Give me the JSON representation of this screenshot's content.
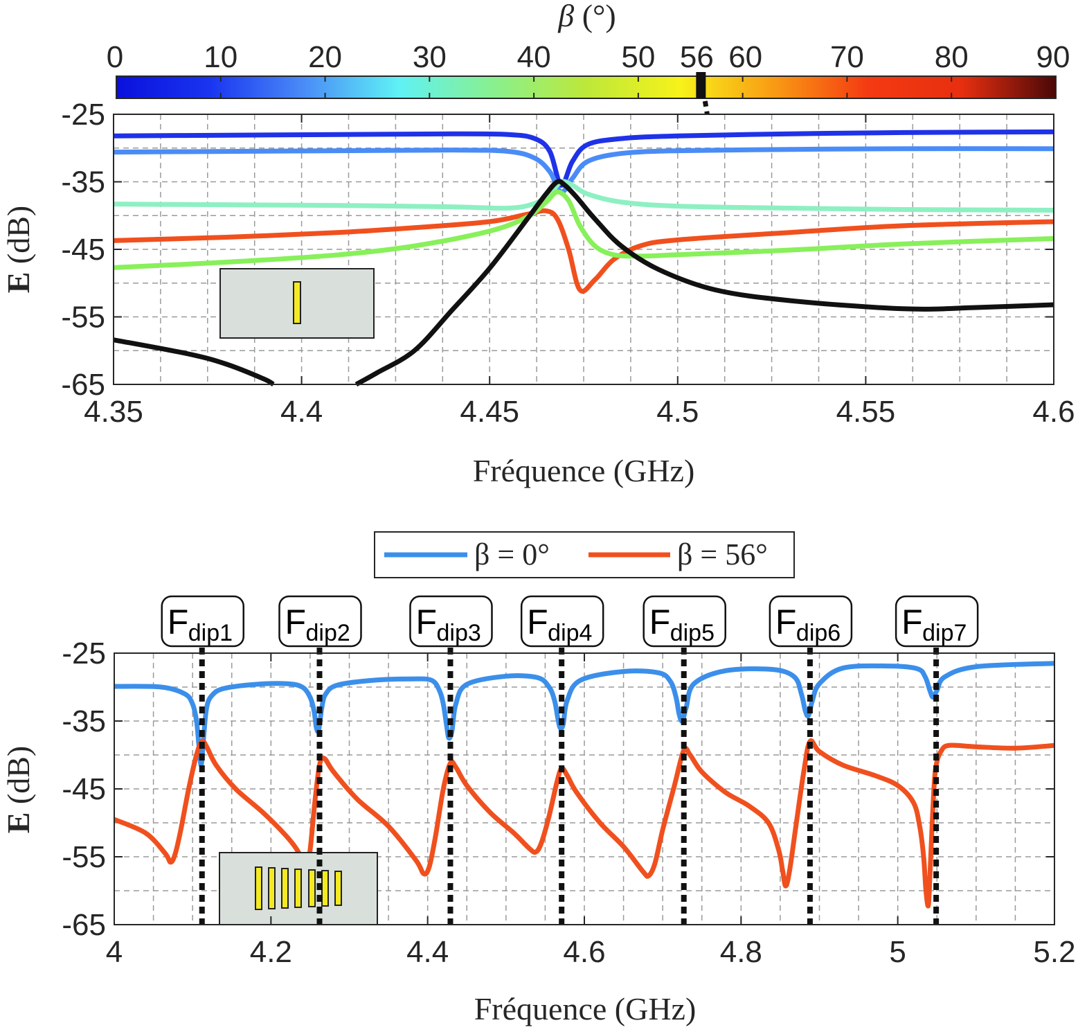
{
  "colors": {
    "beta0": "#3b8fea",
    "beta56": "#f0501e",
    "black": "#111111",
    "inset_bg": "#d9dfdb",
    "element_yellow": "#f4ea22"
  },
  "colorbar": {
    "title_symbol": "β",
    "title_unit": " (°)",
    "ticks": [
      "0",
      "10",
      "20",
      "30",
      "40",
      "50",
      "60",
      "70",
      "80",
      "90"
    ],
    "tick_values": [
      0,
      10,
      20,
      30,
      40,
      50,
      60,
      70,
      80,
      90
    ],
    "marker_label": "56",
    "marker_value": 56,
    "range": [
      0,
      90
    ],
    "stops": [
      "#0a10dc",
      "#1a35f0",
      "#4a8cf7",
      "#5ff1f5",
      "#88f08f",
      "#bde83a",
      "#f7f21a",
      "#f99b14",
      "#f43a12",
      "#e72f10",
      "#4a0808"
    ]
  },
  "chart_data": [
    {
      "type": "line",
      "xlabel": "Fréquence (GHz)",
      "ylabel_bold": "E",
      "ylabel_rest": " (dB)",
      "xlim": [
        4.35,
        4.6
      ],
      "ylim": [
        -65,
        -25
      ],
      "xticks": [
        "4.35",
        "4.4",
        "4.45",
        "4.5",
        "4.55",
        "4.6"
      ],
      "xtick_values": [
        4.35,
        4.4,
        4.45,
        4.5,
        4.55,
        4.6
      ],
      "yticks": [
        "-25",
        "-35",
        "-45",
        "-55",
        "-65"
      ],
      "ytick_values": [
        -25,
        -35,
        -45,
        -55,
        -65
      ],
      "grid": true,
      "series": [
        {
          "color": "#1f32e8",
          "x": [
            4.35,
            4.38,
            4.41,
            4.44,
            4.455,
            4.462,
            4.466,
            4.469,
            4.472,
            4.476,
            4.485,
            4.5,
            4.53,
            4.56,
            4.6
          ],
          "values": [
            -28.2,
            -28.1,
            -28.0,
            -27.9,
            -28.0,
            -28.6,
            -30.5,
            -35.5,
            -32.0,
            -29.5,
            -28.6,
            -28.2,
            -27.9,
            -27.7,
            -27.6
          ]
        },
        {
          "color": "#4a8cf7",
          "x": [
            4.35,
            4.38,
            4.41,
            4.44,
            4.455,
            4.462,
            4.466,
            4.469,
            4.472,
            4.476,
            4.485,
            4.5,
            4.53,
            4.56,
            4.6
          ],
          "values": [
            -30.6,
            -30.5,
            -30.4,
            -30.3,
            -30.5,
            -31.5,
            -33.5,
            -36.5,
            -34.5,
            -32.0,
            -30.8,
            -30.4,
            -30.2,
            -30.1,
            -30.1
          ]
        },
        {
          "color": "#8ef0c2",
          "x": [
            4.35,
            4.38,
            4.41,
            4.44,
            4.455,
            4.462,
            4.466,
            4.469,
            4.472,
            4.476,
            4.485,
            4.5,
            4.53,
            4.56,
            4.6
          ],
          "values": [
            -38.3,
            -38.4,
            -38.5,
            -38.7,
            -38.9,
            -38.2,
            -36.8,
            -35.0,
            -35.5,
            -36.8,
            -38.0,
            -38.6,
            -38.9,
            -39.1,
            -39.2
          ]
        },
        {
          "color": "#f0501e",
          "x": [
            4.35,
            4.38,
            4.41,
            4.43,
            4.45,
            4.46,
            4.465,
            4.468,
            4.471,
            4.474,
            4.478,
            4.483,
            4.49,
            4.5,
            4.53,
            4.56,
            4.6
          ],
          "values": [
            -43.7,
            -43.2,
            -42.5,
            -41.8,
            -40.9,
            -39.8,
            -39.3,
            -40.5,
            -45.0,
            -51.0,
            -49.5,
            -46.5,
            -44.5,
            -43.6,
            -42.5,
            -41.5,
            -40.9
          ]
        },
        {
          "color": "#88f05a",
          "x": [
            4.35,
            4.38,
            4.41,
            4.43,
            4.45,
            4.46,
            4.465,
            4.468,
            4.471,
            4.474,
            4.478,
            4.483,
            4.49,
            4.5,
            4.53,
            4.56,
            4.6
          ],
          "values": [
            -47.7,
            -46.9,
            -45.8,
            -44.5,
            -42.3,
            -40.2,
            -38.0,
            -36.5,
            -37.8,
            -41.5,
            -44.5,
            -45.8,
            -46.0,
            -45.8,
            -45.1,
            -44.2,
            -43.4
          ]
        },
        {
          "color": "#111111",
          "x": [
            4.35,
            4.37,
            4.38,
            4.39,
            4.3925
          ],
          "values": [
            -58.4,
            -60.5,
            -62.0,
            -64.2,
            -65.0
          ]
        },
        {
          "color": "#111111",
          "x": [
            4.4145,
            4.42,
            4.43,
            4.44,
            4.45,
            4.46,
            4.465,
            4.468,
            4.47,
            4.473,
            4.478,
            4.485,
            4.495,
            4.51,
            4.53,
            4.56,
            4.58,
            4.6
          ],
          "values": [
            -65.0,
            -63.3,
            -60.0,
            -54.0,
            -47.8,
            -40.5,
            -36.8,
            -35.0,
            -35.5,
            -37.2,
            -40.5,
            -44.5,
            -48.0,
            -51.0,
            -52.6,
            -53.8,
            -53.6,
            -53.2
          ]
        }
      ]
    },
    {
      "type": "line",
      "xlabel": "Fréquence (GHz)",
      "ylabel_bold": "E",
      "ylabel_rest": " (dB)",
      "xlim": [
        4.0,
        5.2
      ],
      "ylim": [
        -65,
        -25
      ],
      "xticks": [
        "4",
        "4.2",
        "4.4",
        "4.6",
        "4.8",
        "5",
        "5.2"
      ],
      "xtick_values": [
        4.0,
        4.2,
        4.4,
        4.6,
        4.8,
        5.0,
        5.2
      ],
      "yticks": [
        "-25",
        "-35",
        "-45",
        "-55",
        "-65"
      ],
      "ytick_values": [
        -25,
        -35,
        -45,
        -55,
        -65
      ],
      "grid": true,
      "legend": [
        "β = 0°",
        "β = 56°"
      ],
      "legend_placement": "top-center",
      "dips": [
        {
          "label_main": "F",
          "label_sub": "dip1",
          "x": 4.112
        },
        {
          "label_main": "F",
          "label_sub": "dip2",
          "x": 4.262
        },
        {
          "label_main": "F",
          "label_sub": "dip3",
          "x": 4.429
        },
        {
          "label_main": "F",
          "label_sub": "dip4",
          "x": 4.571
        },
        {
          "label_main": "F",
          "label_sub": "dip5",
          "x": 4.727
        },
        {
          "label_main": "F",
          "label_sub": "dip6",
          "x": 4.888
        },
        {
          "label_main": "F",
          "label_sub": "dip7",
          "x": 5.049
        }
      ],
      "series": [
        {
          "name": "β = 0°",
          "color": "#3b8fea",
          "x": [
            4.0,
            4.06,
            4.09,
            4.1,
            4.105,
            4.108,
            4.111,
            4.114,
            4.118,
            4.125,
            4.14,
            4.18,
            4.22,
            4.24,
            4.25,
            4.255,
            4.258,
            4.261,
            4.265,
            4.27,
            4.285,
            4.33,
            4.38,
            4.405,
            4.415,
            4.42,
            4.424,
            4.427,
            4.431,
            4.436,
            4.45,
            4.5,
            4.54,
            4.555,
            4.562,
            4.566,
            4.569,
            4.573,
            4.578,
            4.595,
            4.65,
            4.695,
            4.71,
            4.717,
            4.721,
            4.725,
            4.73,
            4.74,
            4.78,
            4.84,
            4.868,
            4.877,
            4.882,
            4.886,
            4.891,
            4.9,
            4.93,
            4.99,
            5.025,
            5.035,
            5.041,
            5.045,
            5.05,
            5.06,
            5.1,
            5.2
          ],
          "values": [
            -29.9,
            -30.0,
            -31.0,
            -32.5,
            -35.0,
            -38.5,
            -41.5,
            -37.5,
            -33.0,
            -31.2,
            -30.2,
            -29.6,
            -29.5,
            -30.0,
            -31.5,
            -33.5,
            -36.0,
            -36.3,
            -33.0,
            -31.0,
            -29.7,
            -29.0,
            -28.8,
            -29.0,
            -30.5,
            -32.5,
            -35.5,
            -37.5,
            -36.5,
            -32.5,
            -29.6,
            -28.4,
            -28.6,
            -30.0,
            -32.0,
            -34.5,
            -36.0,
            -35.5,
            -32.0,
            -29.0,
            -27.7,
            -27.9,
            -29.2,
            -31.5,
            -34.0,
            -35.0,
            -33.0,
            -29.5,
            -27.6,
            -27.4,
            -28.5,
            -31.0,
            -33.5,
            -34.2,
            -32.0,
            -29.5,
            -27.2,
            -26.9,
            -27.3,
            -28.5,
            -30.5,
            -31.5,
            -30.5,
            -28.5,
            -27.0,
            -26.5
          ]
        },
        {
          "name": "β = 56°",
          "color": "#f0501e",
          "x": [
            4.0,
            4.04,
            4.065,
            4.072,
            4.078,
            4.085,
            4.095,
            4.105,
            4.112,
            4.118,
            4.13,
            4.155,
            4.19,
            4.22,
            4.235,
            4.24,
            4.245,
            4.25,
            4.256,
            4.262,
            4.268,
            4.28,
            4.31,
            4.35,
            4.385,
            4.395,
            4.402,
            4.41,
            4.42,
            4.429,
            4.436,
            4.45,
            4.48,
            4.51,
            4.53,
            4.538,
            4.545,
            4.555,
            4.565,
            4.571,
            4.578,
            4.59,
            4.62,
            4.65,
            4.675,
            4.682,
            4.69,
            4.7,
            4.715,
            4.727,
            4.735,
            4.75,
            4.78,
            4.81,
            4.835,
            4.848,
            4.853,
            4.857,
            4.862,
            4.87,
            4.88,
            4.888,
            4.9,
            4.93,
            4.97,
            5.0,
            5.02,
            5.028,
            5.033,
            5.036,
            5.039,
            5.041,
            5.044,
            5.047,
            5.05,
            5.055,
            5.065,
            5.1,
            5.15,
            5.2
          ],
          "values": [
            -49.5,
            -51.5,
            -54.5,
            -55.8,
            -54.5,
            -51.0,
            -45.0,
            -40.0,
            -38.0,
            -38.8,
            -41.5,
            -45.0,
            -48.5,
            -52.0,
            -54.3,
            -56.0,
            -57.0,
            -54.0,
            -47.0,
            -41.5,
            -40.5,
            -42.5,
            -46.5,
            -50.5,
            -55.5,
            -57.5,
            -56.5,
            -52.0,
            -45.0,
            -41.2,
            -41.8,
            -44.5,
            -48.5,
            -51.5,
            -53.8,
            -54.3,
            -53.0,
            -49.0,
            -44.0,
            -42.0,
            -43.0,
            -45.5,
            -50.0,
            -53.5,
            -57.2,
            -57.8,
            -56.0,
            -51.0,
            -44.5,
            -39.3,
            -40.0,
            -42.5,
            -45.5,
            -47.5,
            -50.0,
            -54.0,
            -57.0,
            -59.3,
            -57.0,
            -50.5,
            -42.5,
            -38.0,
            -39.5,
            -41.5,
            -43.0,
            -44.5,
            -47.0,
            -50.5,
            -55.0,
            -60.0,
            -62.2,
            -58.0,
            -50.0,
            -43.5,
            -41.0,
            -39.5,
            -38.6,
            -38.8,
            -39.0,
            -38.6
          ]
        }
      ]
    }
  ]
}
